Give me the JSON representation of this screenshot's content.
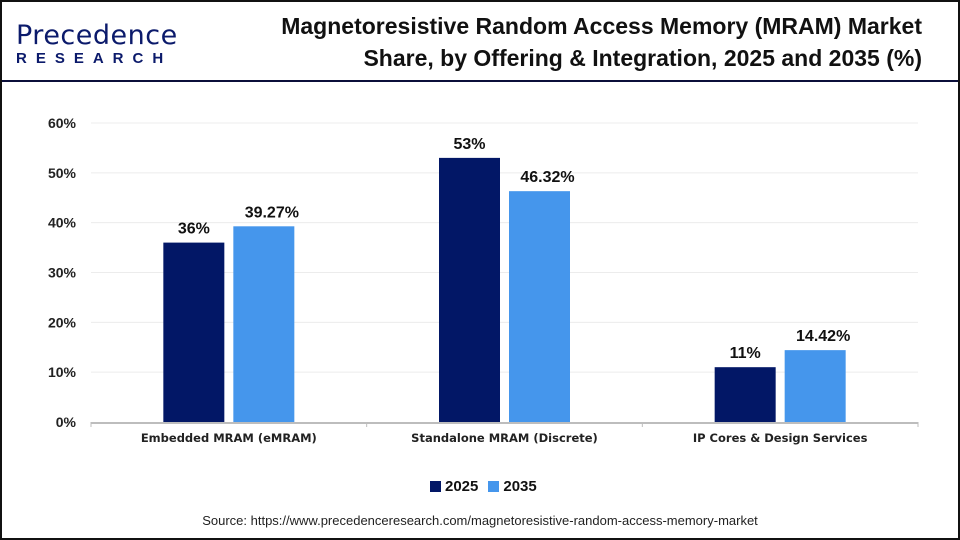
{
  "logo": {
    "main": "Precedence",
    "sub": "RESEARCH"
  },
  "title": "Magnetoresistive Random Access Memory (MRAM) Market Share, by Offering & Integration, 2025 and 2035 (%)",
  "source": "Source: https://www.precedenceresearch.com/magnetoresistive-random-access-memory-market",
  "chart_data": {
    "type": "bar",
    "categories": [
      "Embedded MRAM (eMRAM)",
      "Standalone MRAM (Discrete)",
      "IP Cores & Design Services"
    ],
    "series": [
      {
        "name": "2025",
        "values": [
          36,
          53,
          11
        ],
        "labels": [
          "36%",
          "53%",
          "11%"
        ],
        "color": "#021766"
      },
      {
        "name": "2035",
        "values": [
          39.27,
          46.32,
          14.42
        ],
        "labels": [
          "39.27%",
          "46.32%",
          "14.42%"
        ],
        "color": "#4596ec"
      }
    ],
    "ylim": [
      0,
      60
    ],
    "yticks": [
      "0%",
      "10%",
      "20%",
      "30%",
      "40%",
      "50%",
      "60%"
    ],
    "grid": true,
    "legend_position": "bottom"
  }
}
